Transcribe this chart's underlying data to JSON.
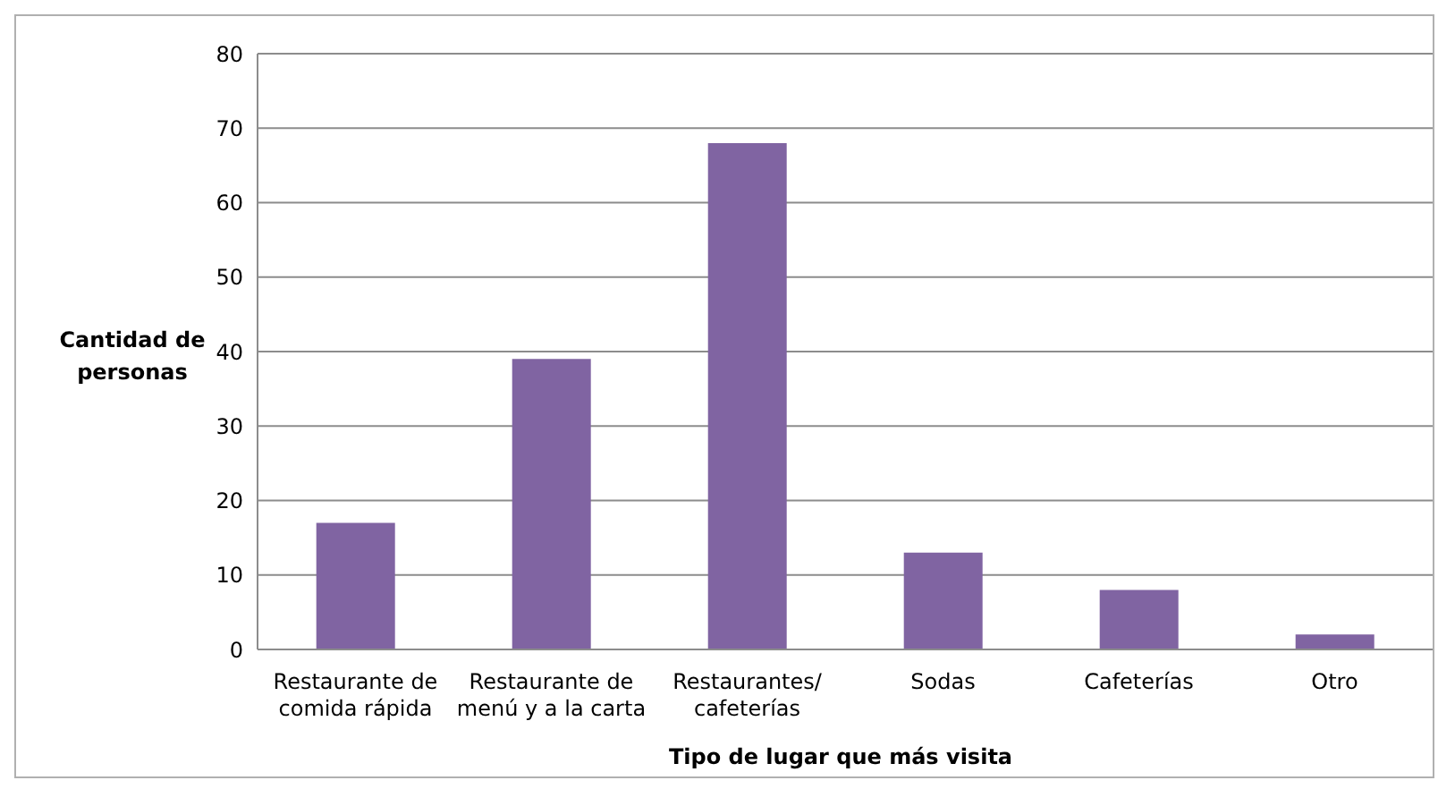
{
  "chart_data": {
    "type": "bar",
    "xlabel": "Tipo de lugar que más visita",
    "ylabel": "Cantidad de personas",
    "categories": [
      "Restaurante de comida rápida",
      "Restaurante de menú y a la carta",
      "Restaurantes/cafeterías",
      "Sodas",
      "Cafeterías",
      "Otro"
    ],
    "values": [
      17,
      39,
      68,
      13,
      8,
      2
    ],
    "color": "#8064a2",
    "ylim": [
      0,
      80
    ],
    "yticks": [
      0,
      10,
      20,
      30,
      40,
      50,
      60,
      70,
      80
    ],
    "grid": "y",
    "legend": false
  }
}
